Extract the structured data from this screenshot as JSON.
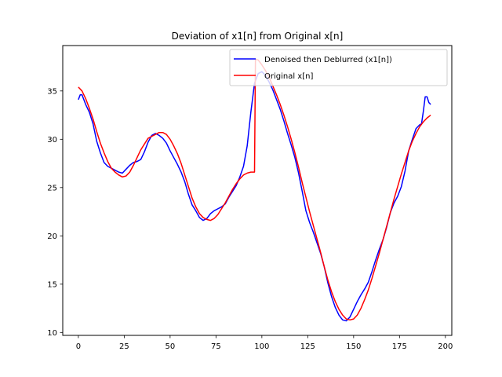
{
  "chart_data": {
    "type": "line",
    "title": "Deviation of x1[n] from Original x[n]",
    "xlabel": "",
    "ylabel": "",
    "xlim": [
      -8.5,
      203.5
    ],
    "ylim": [
      9.7,
      39.7
    ],
    "xticks": [
      0,
      25,
      50,
      75,
      100,
      125,
      150,
      175,
      200
    ],
    "yticks": [
      10,
      15,
      20,
      25,
      30,
      35
    ],
    "grid": false,
    "legend_position": "upper right",
    "series": [
      {
        "name": "Denoised then Deblurred (x1[n])",
        "color": "#0000ff",
        "points": [
          [
            0,
            34.1
          ],
          [
            1,
            34.6
          ],
          [
            2,
            34.6
          ],
          [
            4,
            33.6
          ],
          [
            6,
            32.8
          ],
          [
            8,
            31.6
          ],
          [
            10,
            29.8
          ],
          [
            12,
            28.6
          ],
          [
            14,
            27.6
          ],
          [
            16,
            27.2
          ],
          [
            18,
            27.0
          ],
          [
            20,
            26.8
          ],
          [
            22,
            26.6
          ],
          [
            24,
            26.5
          ],
          [
            26,
            26.9
          ],
          [
            28,
            27.3
          ],
          [
            30,
            27.6
          ],
          [
            32,
            27.7
          ],
          [
            34,
            27.9
          ],
          [
            36,
            28.7
          ],
          [
            38,
            29.7
          ],
          [
            40,
            30.4
          ],
          [
            42,
            30.6
          ],
          [
            44,
            30.4
          ],
          [
            46,
            30.1
          ],
          [
            48,
            29.6
          ],
          [
            50,
            28.8
          ],
          [
            52,
            28.1
          ],
          [
            54,
            27.4
          ],
          [
            56,
            26.6
          ],
          [
            58,
            25.6
          ],
          [
            60,
            24.3
          ],
          [
            62,
            23.2
          ],
          [
            64,
            22.6
          ],
          [
            66,
            21.9
          ],
          [
            68,
            21.6
          ],
          [
            70,
            21.8
          ],
          [
            72,
            22.3
          ],
          [
            74,
            22.6
          ],
          [
            76,
            22.8
          ],
          [
            78,
            23.0
          ],
          [
            80,
            23.3
          ],
          [
            82,
            24.0
          ],
          [
            84,
            24.6
          ],
          [
            86,
            25.2
          ],
          [
            88,
            26.1
          ],
          [
            90,
            27.2
          ],
          [
            92,
            29.3
          ],
          [
            94,
            32.8
          ],
          [
            96,
            35.8
          ],
          [
            98,
            36.8
          ],
          [
            100,
            37.0
          ],
          [
            102,
            36.6
          ],
          [
            104,
            35.9
          ],
          [
            106,
            35.1
          ],
          [
            108,
            34.1
          ],
          [
            110,
            33.1
          ],
          [
            112,
            31.9
          ],
          [
            114,
            30.6
          ],
          [
            116,
            29.4
          ],
          [
            118,
            28.1
          ],
          [
            120,
            26.5
          ],
          [
            122,
            24.6
          ],
          [
            124,
            22.6
          ],
          [
            126,
            21.4
          ],
          [
            128,
            20.4
          ],
          [
            130,
            19.3
          ],
          [
            132,
            18.2
          ],
          [
            134,
            16.8
          ],
          [
            136,
            15.1
          ],
          [
            138,
            13.7
          ],
          [
            140,
            12.6
          ],
          [
            142,
            11.8
          ],
          [
            144,
            11.3
          ],
          [
            146,
            11.2
          ],
          [
            148,
            11.6
          ],
          [
            150,
            12.4
          ],
          [
            152,
            13.2
          ],
          [
            154,
            13.9
          ],
          [
            156,
            14.5
          ],
          [
            158,
            15.2
          ],
          [
            160,
            16.3
          ],
          [
            162,
            17.5
          ],
          [
            164,
            18.6
          ],
          [
            166,
            19.6
          ],
          [
            168,
            20.9
          ],
          [
            170,
            22.4
          ],
          [
            172,
            23.4
          ],
          [
            174,
            24.1
          ],
          [
            176,
            25.1
          ],
          [
            178,
            26.7
          ],
          [
            180,
            28.8
          ],
          [
            182,
            30.0
          ],
          [
            184,
            31.1
          ],
          [
            186,
            31.5
          ],
          [
            187,
            31.6
          ],
          [
            188,
            32.9
          ],
          [
            189,
            34.4
          ],
          [
            190,
            34.4
          ],
          [
            191,
            33.8
          ],
          [
            192,
            33.6
          ]
        ]
      },
      {
        "name": "Original x[n]",
        "color": "#ff0000",
        "points": [
          [
            0,
            35.4
          ],
          [
            2,
            35.0
          ],
          [
            4,
            34.2
          ],
          [
            6,
            33.2
          ],
          [
            8,
            32.1
          ],
          [
            10,
            30.8
          ],
          [
            12,
            29.6
          ],
          [
            14,
            28.6
          ],
          [
            16,
            27.7
          ],
          [
            18,
            27.0
          ],
          [
            20,
            26.6
          ],
          [
            22,
            26.3
          ],
          [
            24,
            26.1
          ],
          [
            26,
            26.2
          ],
          [
            28,
            26.6
          ],
          [
            30,
            27.3
          ],
          [
            32,
            28.1
          ],
          [
            34,
            28.9
          ],
          [
            36,
            29.5
          ],
          [
            38,
            30.1
          ],
          [
            40,
            30.3
          ],
          [
            42,
            30.5
          ],
          [
            44,
            30.7
          ],
          [
            46,
            30.7
          ],
          [
            48,
            30.5
          ],
          [
            50,
            30.0
          ],
          [
            52,
            29.3
          ],
          [
            54,
            28.5
          ],
          [
            56,
            27.5
          ],
          [
            58,
            26.3
          ],
          [
            60,
            25.1
          ],
          [
            62,
            23.9
          ],
          [
            64,
            23.0
          ],
          [
            66,
            22.3
          ],
          [
            68,
            21.9
          ],
          [
            70,
            21.7
          ],
          [
            72,
            21.6
          ],
          [
            74,
            21.8
          ],
          [
            76,
            22.2
          ],
          [
            78,
            22.8
          ],
          [
            80,
            23.4
          ],
          [
            82,
            24.1
          ],
          [
            84,
            24.8
          ],
          [
            86,
            25.4
          ],
          [
            88,
            25.9
          ],
          [
            90,
            26.3
          ],
          [
            92,
            26.5
          ],
          [
            94,
            26.6
          ],
          [
            96,
            26.6
          ],
          [
            96.5,
            38.3
          ],
          [
            98,
            38.2
          ],
          [
            100,
            37.7
          ],
          [
            102,
            37.1
          ],
          [
            104,
            36.4
          ],
          [
            106,
            35.5
          ],
          [
            108,
            34.6
          ],
          [
            110,
            33.6
          ],
          [
            112,
            32.5
          ],
          [
            114,
            31.3
          ],
          [
            116,
            30.0
          ],
          [
            118,
            28.6
          ],
          [
            120,
            27.1
          ],
          [
            122,
            25.5
          ],
          [
            124,
            24.0
          ],
          [
            126,
            22.5
          ],
          [
            128,
            21.1
          ],
          [
            130,
            19.7
          ],
          [
            132,
            18.3
          ],
          [
            134,
            16.8
          ],
          [
            136,
            15.4
          ],
          [
            138,
            14.2
          ],
          [
            140,
            13.2
          ],
          [
            142,
            12.4
          ],
          [
            144,
            11.8
          ],
          [
            146,
            11.4
          ],
          [
            148,
            11.3
          ],
          [
            150,
            11.4
          ],
          [
            152,
            11.8
          ],
          [
            154,
            12.5
          ],
          [
            156,
            13.4
          ],
          [
            158,
            14.4
          ],
          [
            160,
            15.6
          ],
          [
            162,
            16.9
          ],
          [
            164,
            18.2
          ],
          [
            166,
            19.6
          ],
          [
            168,
            21.0
          ],
          [
            170,
            22.4
          ],
          [
            172,
            23.8
          ],
          [
            174,
            25.1
          ],
          [
            176,
            26.4
          ],
          [
            178,
            27.6
          ],
          [
            180,
            28.8
          ],
          [
            182,
            29.8
          ],
          [
            184,
            30.6
          ],
          [
            186,
            31.3
          ],
          [
            188,
            31.8
          ],
          [
            190,
            32.2
          ],
          [
            192,
            32.5
          ]
        ]
      }
    ]
  }
}
